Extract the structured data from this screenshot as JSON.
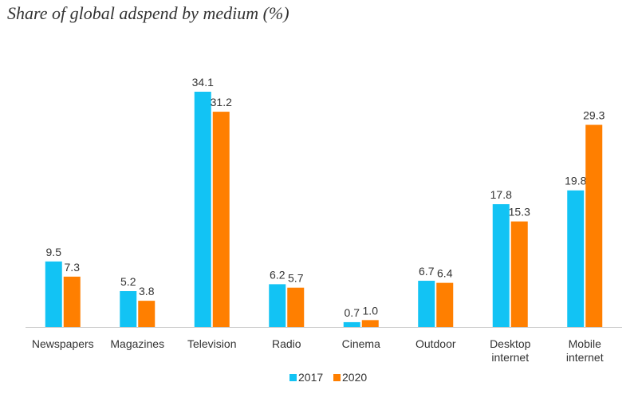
{
  "chart_data": {
    "type": "bar",
    "title": "Share of global adspend by medium (%)",
    "categories": [
      [
        "Newspapers"
      ],
      [
        "Magazines"
      ],
      [
        "Television"
      ],
      [
        "Radio"
      ],
      [
        "Cinema"
      ],
      [
        "Outdoor"
      ],
      [
        "Desktop",
        "internet"
      ],
      [
        "Mobile",
        "internet"
      ]
    ],
    "series": [
      {
        "name": "2017",
        "color": "#12c3f4",
        "values": [
          9.5,
          5.2,
          34.1,
          6.2,
          0.7,
          6.7,
          17.8,
          19.8
        ],
        "labels": [
          "9.5",
          "5.2",
          "34.1",
          "6.2",
          "0.7",
          "6.7",
          "17.8",
          "19.8"
        ]
      },
      {
        "name": "2020",
        "color": "#ff7f00",
        "values": [
          7.3,
          3.8,
          31.2,
          5.7,
          1.0,
          6.4,
          15.3,
          29.3
        ],
        "labels": [
          "7.3",
          "3.8",
          "31.2",
          "5.7",
          "1.0",
          "6.4",
          "15.3",
          "29.3"
        ]
      }
    ],
    "ylim": [
      0,
      35
    ],
    "grid": false,
    "legend_position": "bottom-center",
    "xlabel": "",
    "ylabel": ""
  }
}
